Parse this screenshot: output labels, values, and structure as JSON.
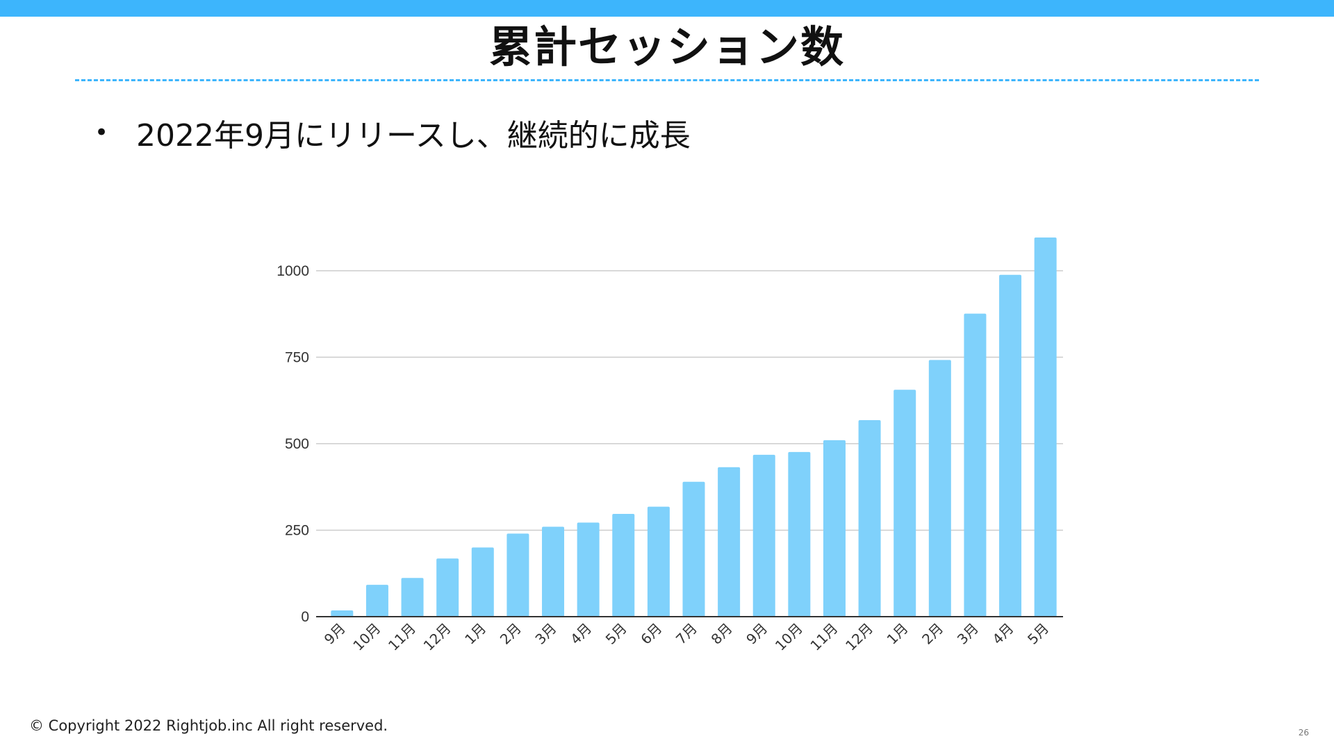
{
  "slide": {
    "title": "累計セッション数",
    "bullet_symbol": "•",
    "bullet_text": "2022年9月にリリースし、継続的に成長",
    "copyright": "© Copyright 2022 Rightjob.inc All right reserved.",
    "page_number": "26",
    "accent_color": "#3db5fc"
  },
  "chart_data": {
    "type": "bar",
    "title": "",
    "xlabel": "",
    "ylabel": "",
    "ylim": [
      0,
      1100
    ],
    "yticks": [
      0,
      250,
      500,
      750,
      1000
    ],
    "grid": true,
    "bar_color": "#7fd1fb",
    "categories": [
      "9月",
      "10月",
      "11月",
      "12月",
      "1月",
      "2月",
      "3月",
      "4月",
      "5月",
      "6月",
      "7月",
      "8月",
      "9月",
      "10月",
      "11月",
      "12月",
      "1月",
      "2月",
      "3月",
      "4月",
      "5月"
    ],
    "values": [
      18,
      92,
      112,
      168,
      200,
      240,
      260,
      272,
      297,
      318,
      390,
      432,
      468,
      476,
      510,
      568,
      656,
      742,
      876,
      988,
      1096
    ]
  }
}
